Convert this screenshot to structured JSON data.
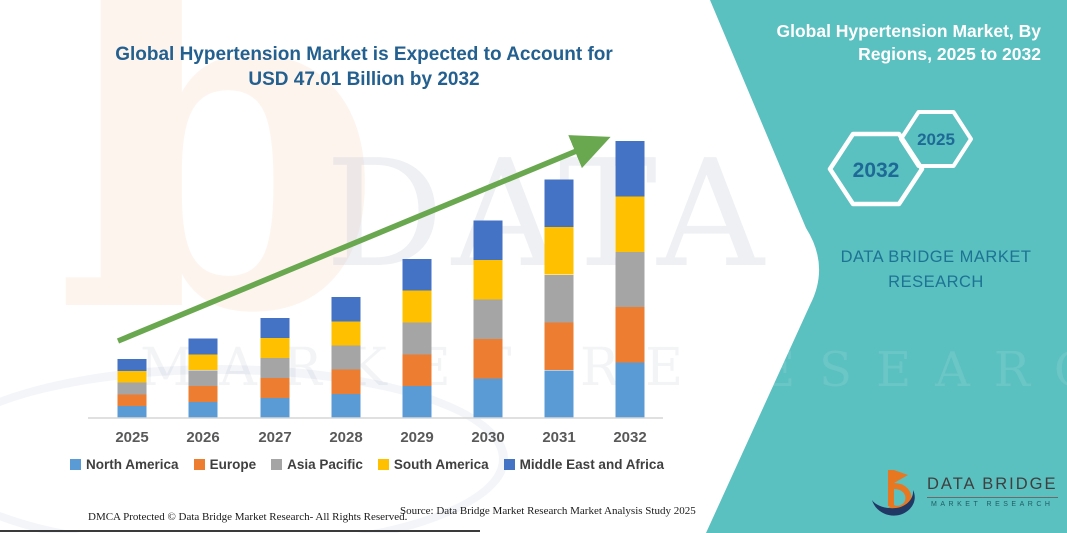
{
  "header": {
    "chart_title": "Global Hypertension Market is Expected to Account for USD 47.01 Billion by 2032"
  },
  "panel": {
    "title": "Global Hypertension Market, By Regions, 2025 to 2032",
    "hexagons": [
      {
        "label": "2032"
      },
      {
        "label": "2025"
      }
    ],
    "brand_line1": "DATA BRIDGE MARKET",
    "brand_line2": "RESEARCH"
  },
  "logo": {
    "name": "DATA BRIDGE",
    "tagline": "MARKET RESEARCH"
  },
  "footer": {
    "left": "DMCA Protected © Data Bridge Market Research-  All Rights Reserved.",
    "source": "Source: Data Bridge Market Research  Market Analysis Study 2025"
  },
  "watermark": {
    "letter": "b",
    "big_text": "DATA BRI",
    "row_text": "MARKET RE",
    "row_text_teal": "RESEARCH"
  },
  "colors": {
    "teal_panel": "#5bc0c0",
    "title_blue": "#24608f",
    "hex_label_blue": "#1d6a96",
    "panel_brand_blue": "#1c7394",
    "arrow_green": "#69a84f",
    "axis_gray": "#d6d6d6",
    "year_label_gray": "#595959",
    "logo_orange": "#e87722",
    "logo_navy": "#1f3864"
  },
  "chart_data": {
    "type": "bar",
    "stacked": true,
    "title": "Global Hypertension Market is Expected to Account for USD 47.01 Billion by 2032",
    "units": "USD Billion (values estimated from bar heights; 2032 total = 47.01)",
    "categories": [
      "2025",
      "2026",
      "2027",
      "2028",
      "2029",
      "2030",
      "2031",
      "2032"
    ],
    "series": [
      {
        "name": "North America",
        "color": "#5B9BD5",
        "values": [
          2.0,
          2.7,
          3.4,
          4.1,
          5.4,
          6.7,
          8.1,
          9.4
        ]
      },
      {
        "name": "Europe",
        "color": "#ED7D31",
        "values": [
          2.0,
          2.7,
          3.4,
          4.1,
          5.4,
          6.7,
          8.1,
          9.4
        ]
      },
      {
        "name": "Asia Pacific",
        "color": "#A5A5A5",
        "values": [
          2.0,
          2.7,
          3.4,
          4.1,
          5.4,
          6.7,
          8.1,
          9.4
        ]
      },
      {
        "name": "South America",
        "color": "#FFC000",
        "values": [
          2.0,
          2.7,
          3.4,
          4.1,
          5.4,
          6.7,
          8.1,
          9.4
        ]
      },
      {
        "name": "Middle East and Africa",
        "color": "#4472C4",
        "values": [
          2.0,
          2.7,
          3.4,
          4.1,
          5.4,
          6.7,
          8.1,
          9.4
        ]
      }
    ],
    "totals": [
      10.0,
      13.5,
      17.0,
      20.5,
      27.0,
      33.5,
      40.5,
      47.0
    ],
    "ylim": [
      0,
      50
    ],
    "y_axis_visible": false,
    "gridlines": false,
    "legend_position": "bottom",
    "annotations": [
      "green upward trend arrow from the 2025 bar to the top of the 2032 bar"
    ]
  }
}
